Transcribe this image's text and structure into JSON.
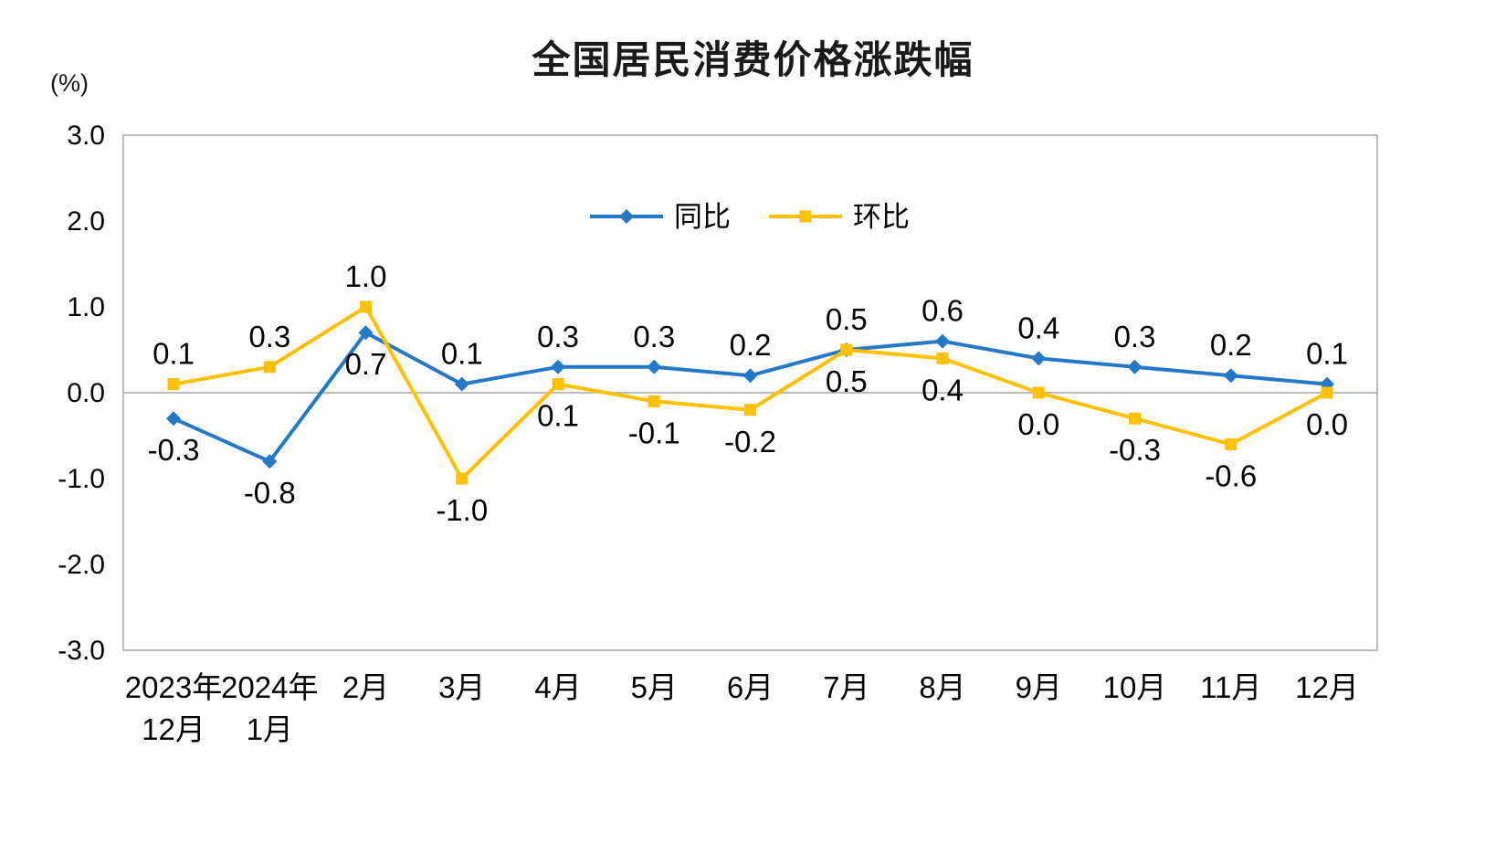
{
  "chart_data": {
    "type": "line",
    "title": "全国居民消费价格涨跌幅",
    "y_unit_label": "(%)",
    "ylim": [
      -3.0,
      3.0
    ],
    "y_ticks": [
      "3.0",
      "2.0",
      "1.0",
      "0.0",
      "-1.0",
      "-2.0",
      "-3.0"
    ],
    "grid": false,
    "legend_position": "top-center-inside",
    "axis_color": "#A6A6A6",
    "text_color": "#000000",
    "categories": [
      [
        "2023年",
        "12月"
      ],
      [
        "2024年",
        "1月"
      ],
      [
        "2月"
      ],
      [
        "3月"
      ],
      [
        "4月"
      ],
      [
        "5月"
      ],
      [
        "6月"
      ],
      [
        "7月"
      ],
      [
        "8月"
      ],
      [
        "9月"
      ],
      [
        "10月"
      ],
      [
        "11月"
      ],
      [
        "12月"
      ]
    ],
    "series": [
      {
        "key": "yoy",
        "name": "同比",
        "color": "#2478C8",
        "marker": "diamond",
        "values": [
          -0.3,
          -0.8,
          0.7,
          0.1,
          0.3,
          0.3,
          0.2,
          0.5,
          0.6,
          0.4,
          0.3,
          0.2,
          0.1
        ],
        "label_side": [
          "below",
          "below",
          "below",
          "above",
          "above",
          "above",
          "above",
          "above",
          "above",
          "above",
          "above",
          "above",
          "above"
        ]
      },
      {
        "key": "mom",
        "name": "环比",
        "color": "#FFC000",
        "marker": "square",
        "values": [
          0.1,
          0.3,
          1.0,
          -1.0,
          0.1,
          -0.1,
          -0.2,
          0.5,
          0.4,
          0.0,
          -0.3,
          -0.6,
          0.0
        ],
        "label_side": [
          "above",
          "above",
          "above",
          "below",
          "below",
          "below",
          "below",
          "below",
          "below",
          "below",
          "below",
          "below",
          "below"
        ]
      }
    ]
  }
}
